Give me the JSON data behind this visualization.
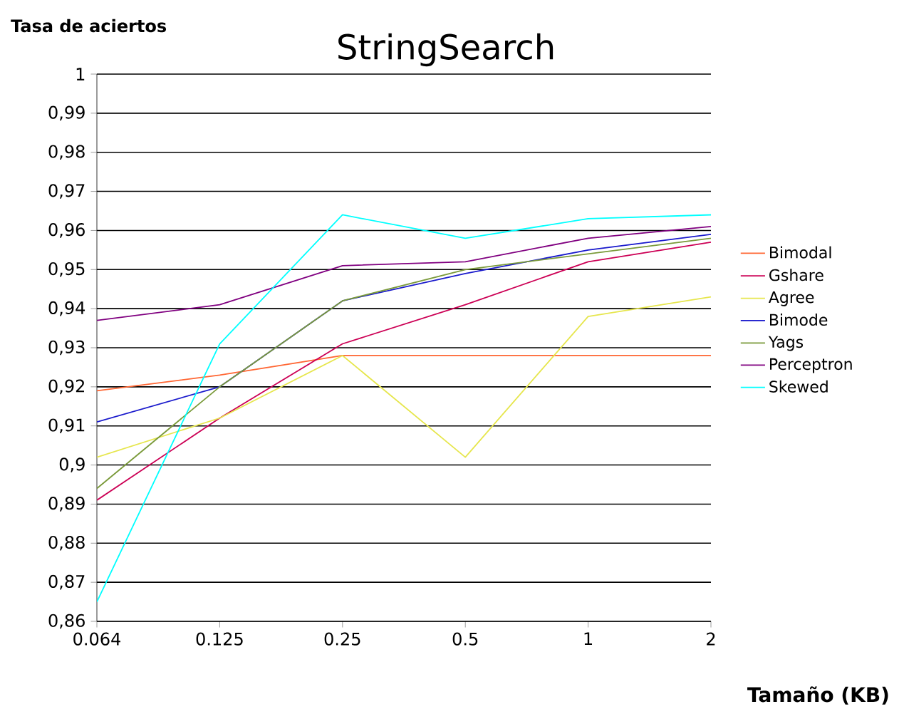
{
  "chart_data": {
    "type": "line",
    "title": "StringSearch",
    "xlabel": "Tamaño (KB)",
    "ylabel": "Tasa de aciertos",
    "categories": [
      "0.064",
      "0.125",
      "0.25",
      "0.5",
      "1",
      "2"
    ],
    "series": [
      {
        "name": "Bimodal",
        "color": "#ff6633",
        "values": [
          0.919,
          0.923,
          0.928,
          0.928,
          0.928,
          0.928
        ]
      },
      {
        "name": "Gshare",
        "color": "#cc0055",
        "values": [
          0.891,
          0.912,
          0.931,
          0.941,
          0.952,
          0.957
        ]
      },
      {
        "name": "Agree",
        "color": "#e6e64d",
        "values": [
          0.902,
          0.912,
          0.928,
          0.902,
          0.938,
          0.943
        ]
      },
      {
        "name": "Bimode",
        "color": "#1a1acc",
        "values": [
          0.911,
          0.92,
          0.942,
          0.949,
          0.955,
          0.959
        ]
      },
      {
        "name": "Yags",
        "color": "#7a9a3a",
        "values": [
          0.894,
          0.92,
          0.942,
          0.95,
          0.954,
          0.958
        ]
      },
      {
        "name": "Perceptron",
        "color": "#800080",
        "values": [
          0.937,
          0.941,
          0.951,
          0.952,
          0.958,
          0.961
        ]
      },
      {
        "name": "Skewed",
        "color": "#00ffff",
        "values": [
          0.865,
          0.931,
          0.964,
          0.958,
          0.963,
          0.964
        ]
      }
    ],
    "ylim": [
      0.86,
      1
    ],
    "yticks": [
      {
        "value": 0.86,
        "label": "0,86"
      },
      {
        "value": 0.87,
        "label": "0,87"
      },
      {
        "value": 0.88,
        "label": "0,88"
      },
      {
        "value": 0.89,
        "label": "0,89"
      },
      {
        "value": 0.9,
        "label": "0,9"
      },
      {
        "value": 0.91,
        "label": "0,91"
      },
      {
        "value": 0.92,
        "label": "0,92"
      },
      {
        "value": 0.93,
        "label": "0,93"
      },
      {
        "value": 0.94,
        "label": "0,94"
      },
      {
        "value": 0.95,
        "label": "0,95"
      },
      {
        "value": 0.96,
        "label": "0,96"
      },
      {
        "value": 0.97,
        "label": "0,97"
      },
      {
        "value": 0.98,
        "label": "0,98"
      },
      {
        "value": 0.99,
        "label": "0,99"
      },
      {
        "value": 1,
        "label": "1"
      }
    ],
    "grid": "y",
    "legend": "right",
    "marker": "none",
    "line_style": "solid"
  }
}
